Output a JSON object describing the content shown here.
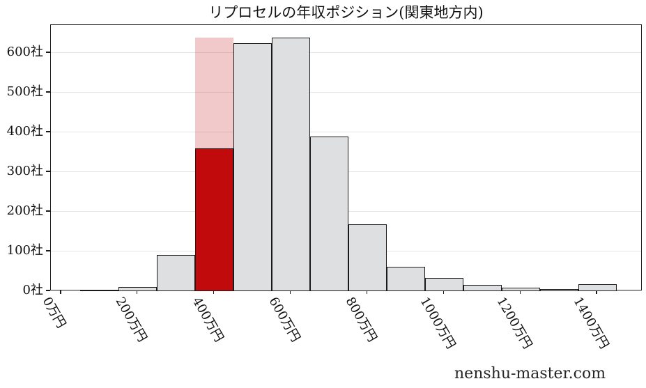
{
  "watermark": "nenshu-master.com",
  "chart_data": {
    "type": "bar",
    "subtype": "histogram",
    "title": "リプロセルの年収ポジション(関東地方内)",
    "xlabel": "",
    "ylabel": "",
    "x_unit": "万円",
    "y_unit": "社",
    "grid": "horizontal-only",
    "legend_position": "none",
    "xlim_manen": [
      -27,
      1518
    ],
    "ylim": [
      0,
      670
    ],
    "bin_width_manen": 100,
    "x_ticks": [
      {
        "value": 0,
        "label": "0万円"
      },
      {
        "value": 200,
        "label": "200万円"
      },
      {
        "value": 400,
        "label": "400万円"
      },
      {
        "value": 600,
        "label": "600万円"
      },
      {
        "value": 800,
        "label": "800万円"
      },
      {
        "value": 1000,
        "label": "1000万円"
      },
      {
        "value": 1200,
        "label": "1200万円"
      },
      {
        "value": 1400,
        "label": "1400万円"
      }
    ],
    "y_ticks": [
      {
        "value": 0,
        "label": "0社"
      },
      {
        "value": 100,
        "label": "100社"
      },
      {
        "value": 200,
        "label": "200社"
      },
      {
        "value": 300,
        "label": "300社"
      },
      {
        "value": 400,
        "label": "400社"
      },
      {
        "value": 500,
        "label": "500社"
      },
      {
        "value": 600,
        "label": "600社"
      }
    ],
    "bins": [
      {
        "center_manen": 100,
        "count": 3
      },
      {
        "center_manen": 200,
        "count": 11
      },
      {
        "center_manen": 300,
        "count": 91
      },
      {
        "center_manen": 400,
        "count": 638,
        "highlight_count": 360
      },
      {
        "center_manen": 500,
        "count": 625
      },
      {
        "center_manen": 600,
        "count": 638
      },
      {
        "center_manen": 700,
        "count": 390
      },
      {
        "center_manen": 800,
        "count": 168
      },
      {
        "center_manen": 900,
        "count": 62
      },
      {
        "center_manen": 1000,
        "count": 33
      },
      {
        "center_manen": 1100,
        "count": 16
      },
      {
        "center_manen": 1200,
        "count": 9
      },
      {
        "center_manen": 1300,
        "count": 6
      },
      {
        "center_manen": 1400,
        "count": 17
      }
    ],
    "colors": {
      "bar_fill": "#dedfe1",
      "bar_edge": "#1a1a1a",
      "highlight_fill": "#c10a0c",
      "highlight_bg_fill": "rgba(193,10,12,0.22)",
      "gridline": "#e5e5e5",
      "axis": "#1a1a1a"
    }
  }
}
